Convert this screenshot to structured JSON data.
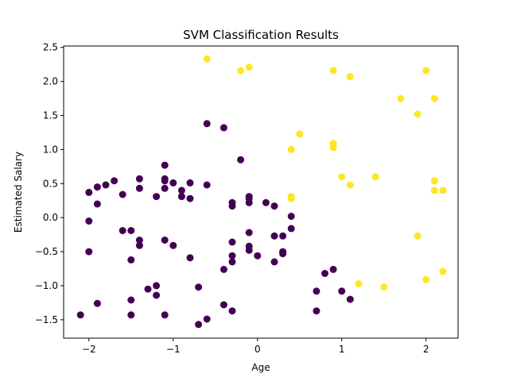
{
  "chart_data": {
    "type": "scatter",
    "title": "SVM Classification Results",
    "xlabel": "Age",
    "ylabel": "Estimated Salary",
    "xlim": [
      -2.3,
      2.38
    ],
    "ylim": [
      -1.77,
      2.52
    ],
    "xticks": [
      -2,
      -1,
      0,
      1,
      2
    ],
    "yticks": [
      -1.5,
      -1.0,
      -0.5,
      0.0,
      0.5,
      1.0,
      1.5,
      2.0,
      2.5
    ],
    "grid": false,
    "legend": "none",
    "colors": {
      "class_0": "#440154",
      "class_1": "#fde725",
      "axes": "#000000"
    },
    "series": [
      {
        "class": 0,
        "points": [
          [
            -2.1,
            -1.43
          ],
          [
            -2.0,
            0.37
          ],
          [
            -2.0,
            -0.05
          ],
          [
            -2.0,
            -0.5
          ],
          [
            -1.9,
            0.45
          ],
          [
            -1.9,
            0.2
          ],
          [
            -1.9,
            -1.26
          ],
          [
            -1.8,
            0.48
          ],
          [
            -1.7,
            0.54
          ],
          [
            -1.6,
            0.34
          ],
          [
            -1.6,
            -0.19
          ],
          [
            -1.5,
            -0.19
          ],
          [
            -1.5,
            -0.62
          ],
          [
            -1.5,
            -1.21
          ],
          [
            -1.5,
            -1.43
          ],
          [
            -1.4,
            0.57
          ],
          [
            -1.4,
            0.43
          ],
          [
            -1.4,
            -0.33
          ],
          [
            -1.4,
            -0.41
          ],
          [
            -1.3,
            -1.05
          ],
          [
            -1.2,
            0.31
          ],
          [
            -1.2,
            -1.0
          ],
          [
            -1.2,
            -1.14
          ],
          [
            -1.1,
            0.77
          ],
          [
            -1.1,
            0.57
          ],
          [
            -1.1,
            0.54
          ],
          [
            -1.1,
            0.43
          ],
          [
            -1.1,
            -0.33
          ],
          [
            -1.1,
            -1.43
          ],
          [
            -1.0,
            0.51
          ],
          [
            -1.0,
            -0.41
          ],
          [
            -0.9,
            0.4
          ],
          [
            -0.9,
            0.31
          ],
          [
            -0.8,
            0.51
          ],
          [
            -0.8,
            0.28
          ],
          [
            -0.8,
            -0.59
          ],
          [
            -0.7,
            -1.02
          ],
          [
            -0.7,
            -1.57
          ],
          [
            -0.6,
            1.38
          ],
          [
            -0.6,
            0.48
          ],
          [
            -0.6,
            -1.49
          ],
          [
            -0.4,
            1.32
          ],
          [
            -0.4,
            -0.76
          ],
          [
            -0.4,
            -1.28
          ],
          [
            -0.3,
            0.22
          ],
          [
            -0.3,
            0.17
          ],
          [
            -0.3,
            -0.36
          ],
          [
            -0.3,
            -0.56
          ],
          [
            -0.3,
            -0.65
          ],
          [
            -0.3,
            -1.37
          ],
          [
            -0.2,
            0.85
          ],
          [
            -0.1,
            0.31
          ],
          [
            -0.1,
            0.28
          ],
          [
            -0.1,
            0.22
          ],
          [
            -0.1,
            -0.22
          ],
          [
            -0.1,
            -0.42
          ],
          [
            -0.1,
            -0.48
          ],
          [
            0.0,
            -0.56
          ],
          [
            0.1,
            0.22
          ],
          [
            0.2,
            0.17
          ],
          [
            0.2,
            -0.27
          ],
          [
            0.2,
            -0.65
          ],
          [
            0.3,
            -0.27
          ],
          [
            0.3,
            -0.5
          ],
          [
            0.3,
            -0.53
          ],
          [
            0.4,
            0.02
          ],
          [
            0.4,
            -0.16
          ],
          [
            0.7,
            -1.08
          ],
          [
            0.7,
            -1.37
          ],
          [
            0.8,
            -0.82
          ],
          [
            0.9,
            -0.76
          ],
          [
            1.0,
            -1.08
          ],
          [
            1.1,
            -1.2
          ]
        ]
      },
      {
        "class": 1,
        "points": [
          [
            -0.6,
            2.33
          ],
          [
            -0.2,
            2.16
          ],
          [
            -0.1,
            2.21
          ],
          [
            0.4,
            1.0
          ],
          [
            0.4,
            0.31
          ],
          [
            0.4,
            0.28
          ],
          [
            0.5,
            1.23
          ],
          [
            0.9,
            2.16
          ],
          [
            0.9,
            1.09
          ],
          [
            0.9,
            1.03
          ],
          [
            1.0,
            0.6
          ],
          [
            1.1,
            2.07
          ],
          [
            1.1,
            0.48
          ],
          [
            1.2,
            -0.97
          ],
          [
            1.4,
            0.6
          ],
          [
            1.5,
            -1.02
          ],
          [
            1.7,
            1.75
          ],
          [
            1.9,
            1.52
          ],
          [
            1.9,
            -0.27
          ],
          [
            2.0,
            2.16
          ],
          [
            2.0,
            -0.91
          ],
          [
            2.1,
            1.75
          ],
          [
            2.1,
            0.54
          ],
          [
            2.1,
            0.4
          ],
          [
            2.2,
            0.4
          ],
          [
            2.2,
            -0.79
          ]
        ]
      }
    ]
  }
}
